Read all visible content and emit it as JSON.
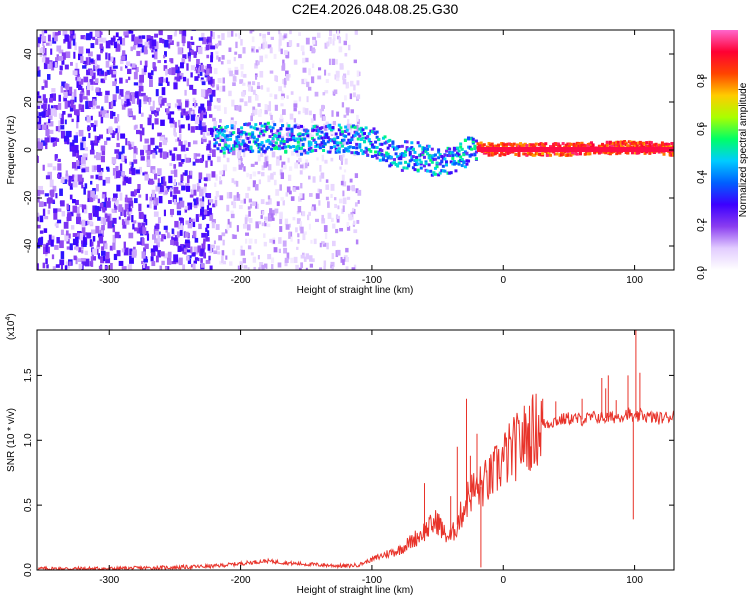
{
  "title": "C2E4.2026.048.08.25.G30",
  "colors": {
    "snr_line": "#e8332a",
    "axis": "#000000",
    "background": "#ffffff"
  },
  "chart_data": [
    {
      "type": "heatmap",
      "xlabel": "Height of straight line (km)",
      "ylabel": "Frequency (Hz)",
      "xlim": [
        -355,
        130
      ],
      "ylim": [
        -50,
        50
      ],
      "x_ticks": [
        -300,
        -200,
        -100,
        0,
        100
      ],
      "y_ticks": [
        -40,
        -20,
        0,
        20,
        40
      ],
      "colorbar": {
        "label": "Normalized spectral amplitude",
        "ticks": [
          0.0,
          0.2,
          0.4,
          0.6,
          0.8
        ],
        "range": [
          0,
          1
        ],
        "colormap": [
          "#ffffff",
          "#e2ccff",
          "#8a3df0",
          "#3c00ff",
          "#0060ff",
          "#00ccff",
          "#00ff66",
          "#aaff00",
          "#ffcc00",
          "#ff4400",
          "#ff0033",
          "#ff66cc"
        ]
      },
      "ridge": {
        "description_x": [
          -220,
          -200,
          -180,
          -160,
          -140,
          -120,
          -100,
          -90,
          -80,
          -70,
          -60,
          -50,
          -40,
          -30,
          -20,
          -10,
          0,
          50,
          100,
          130
        ],
        "frequency_y": [
          4,
          5,
          5,
          4,
          4,
          5,
          3,
          0,
          -3,
          -2,
          -4,
          -6,
          -4,
          -2,
          1,
          0,
          0,
          0,
          1,
          0
        ]
      }
    },
    {
      "type": "line",
      "xlabel": "Height of straight line (km)",
      "ylabel": "SNR (10 * v/v)",
      "y_multiplier": "(x10",
      "y_multiplier_exp": "4",
      "y_multiplier_close": ")",
      "xlim": [
        -355,
        130
      ],
      "ylim": [
        0,
        1.85
      ],
      "x_ticks": [
        -300,
        -200,
        -100,
        0,
        100
      ],
      "y_ticks": [
        0.0,
        0.5,
        1.0,
        1.5
      ],
      "series": [
        {
          "x": [
            -355,
            -300,
            -250,
            -220,
            -200,
            -180,
            -160,
            -140,
            -120,
            -110,
            -100,
            -90,
            -80,
            -70,
            -60,
            -50,
            -45,
            -40,
            -35,
            -30,
            -25,
            -20,
            -15,
            -10,
            0,
            10,
            20,
            30,
            40,
            50,
            60,
            70,
            80,
            90,
            95,
            100,
            105,
            110,
            120,
            130
          ],
          "values": [
            0.01,
            0.01,
            0.02,
            0.03,
            0.05,
            0.07,
            0.05,
            0.04,
            0.03,
            0.04,
            0.08,
            0.12,
            0.15,
            0.22,
            0.3,
            0.38,
            0.28,
            0.25,
            0.35,
            0.48,
            0.6,
            0.62,
            0.66,
            0.7,
            0.85,
            0.95,
            1.05,
            1.12,
            1.15,
            1.17,
            1.16,
            1.18,
            1.17,
            1.19,
            1.21,
            1.16,
            1.2,
            1.18,
            1.17,
            1.19
          ]
        }
      ],
      "spikes": {
        "x": [
          -60,
          -40,
          -35,
          -28,
          -25,
          -20,
          -17,
          30,
          40,
          60,
          75,
          78,
          80,
          86,
          95,
          99,
          101,
          104
        ],
        "values": [
          0.67,
          0.57,
          0.95,
          1.32,
          0.88,
          1.05,
          0.02,
          1.32,
          1.3,
          1.32,
          1.48,
          1.4,
          1.5,
          1.31,
          1.5,
          0.39,
          1.88,
          1.52
        ]
      }
    }
  ]
}
